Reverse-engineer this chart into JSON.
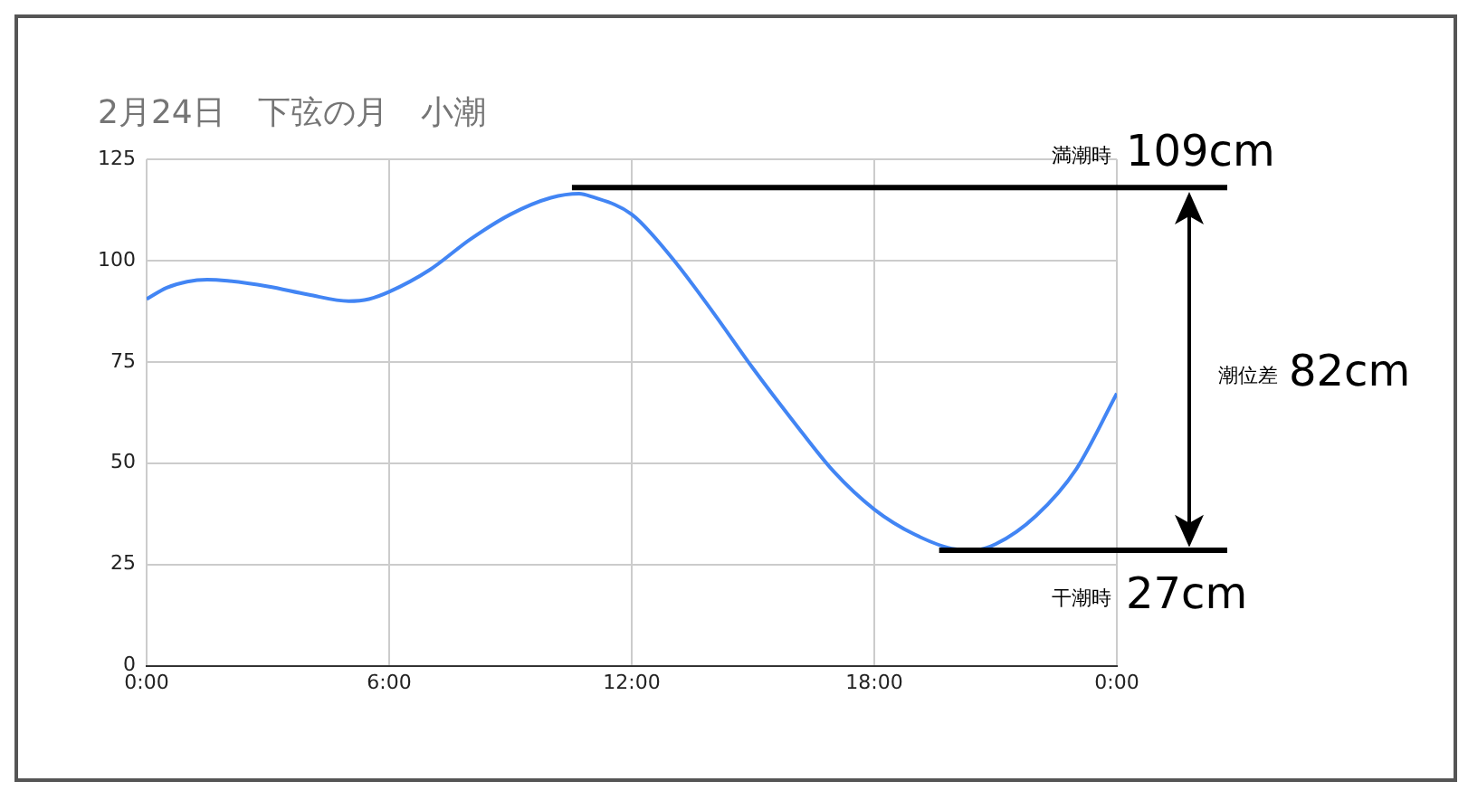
{
  "chart_data": {
    "type": "line",
    "title": "2月24日　下弦の月　小潮",
    "x": [
      0,
      0.5,
      1,
      1.5,
      2,
      3,
      4,
      5,
      5.5,
      6,
      7,
      8,
      9,
      10,
      10.7,
      11,
      12,
      13,
      14,
      15,
      16,
      17,
      18,
      19,
      20,
      20.5,
      21,
      22,
      23,
      24
    ],
    "series": [
      {
        "color": "#4285f4",
        "values": [
          90.5,
          93.3,
          94.8,
          95.3,
          95,
          93.6,
          91.6,
          90,
          90.5,
          92.3,
          97.7,
          105.2,
          111.4,
          115.5,
          116.5,
          115.8,
          111.4,
          100.6,
          87.4,
          73.4,
          60.3,
          47.9,
          38.6,
          32.4,
          28.8,
          28.6,
          30,
          37,
          48.6,
          67.2
        ]
      }
    ],
    "xlim": [
      0,
      24
    ],
    "xticks": [
      {
        "value": 0,
        "label": "0:00"
      },
      {
        "value": 6,
        "label": "6:00"
      },
      {
        "value": 12,
        "label": "12:00"
      },
      {
        "value": 18,
        "label": "18:00"
      },
      {
        "value": 24,
        "label": "0:00"
      }
    ],
    "ylim": [
      0,
      125
    ],
    "yticks": [
      0,
      25,
      50,
      75,
      100,
      125
    ],
    "grid": true,
    "legend": false,
    "marker": "none",
    "line_style": "solid",
    "ref_lines": [
      {
        "axis": "y",
        "value": 118,
        "label": "満潮時 109cm",
        "color": "#000000"
      },
      {
        "axis": "y",
        "value": 28.5,
        "label": "干潮時 27cm",
        "color": "#000000"
      }
    ],
    "annotations": [
      "潮位差 82cm"
    ]
  }
}
